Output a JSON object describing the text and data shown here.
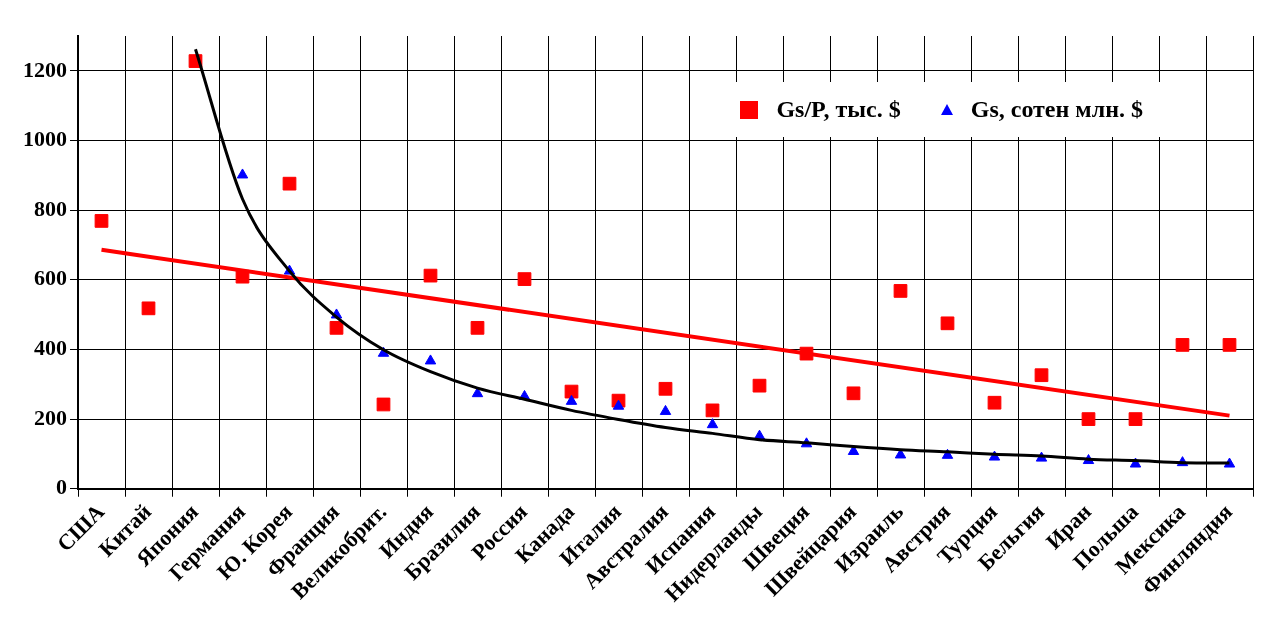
{
  "chart_data": {
    "type": "scatter",
    "categories": [
      "США",
      "Китай",
      "Япония",
      "Германия",
      "Ю. Корея",
      "Франция",
      "Великобрит.",
      "Индия",
      "Бразилия",
      "Россия",
      "Канада",
      "Италия",
      "Австралия",
      "Испания",
      "Нидерланды",
      "Швеция",
      "Швейцария",
      "Израиль",
      "Австрия",
      "Турция",
      "Бельгия",
      "Иран",
      "Польша",
      "Мексика",
      "Финляндия"
    ],
    "series": [
      {
        "name": "Gs/P, тыс. $",
        "type": "scatter",
        "marker": "square",
        "color": "#ff0000",
        "values": [
          769,
          518,
          1228,
          609,
          876,
          462,
          242,
          612,
          462,
          602,
          279,
          253,
          287,
          225,
          296,
          388,
          274,
          568,
          475,
          247,
          326,
          200,
          200,
          413,
          413
        ]
      },
      {
        "name": "Gs, сотен млн. $",
        "type": "scatter",
        "marker": "triangle",
        "color": "#0000ff",
        "values": [
          null,
          null,
          null,
          901,
          625,
          499,
          389,
          367,
          273,
          265,
          251,
          237,
          222,
          184,
          151,
          129,
          107,
          97,
          96,
          91,
          88,
          81,
          71,
          75,
          71
        ]
      },
      {
        "type": "line",
        "marker": "none",
        "color": "#ff0000",
        "values": [
          686,
          null,
          null,
          null,
          null,
          null,
          null,
          null,
          null,
          null,
          null,
          null,
          null,
          null,
          null,
          null,
          null,
          null,
          null,
          null,
          null,
          null,
          null,
          null,
          210
        ]
      },
      {
        "type": "line",
        "marker": "none",
        "color": "#000000",
        "values": [
          null,
          null,
          1262,
          832,
          625,
          493,
          399,
          336,
          289,
          257,
          225,
          199,
          176,
          159,
          141,
          132,
          121,
          112,
          106,
          99,
          94,
          85,
          81,
          75,
          74
        ]
      }
    ],
    "ylim": [
      0,
      1300
    ],
    "yticks": [
      0,
      200,
      400,
      600,
      800,
      1000,
      1200
    ],
    "grid": true,
    "legend": "top right"
  }
}
